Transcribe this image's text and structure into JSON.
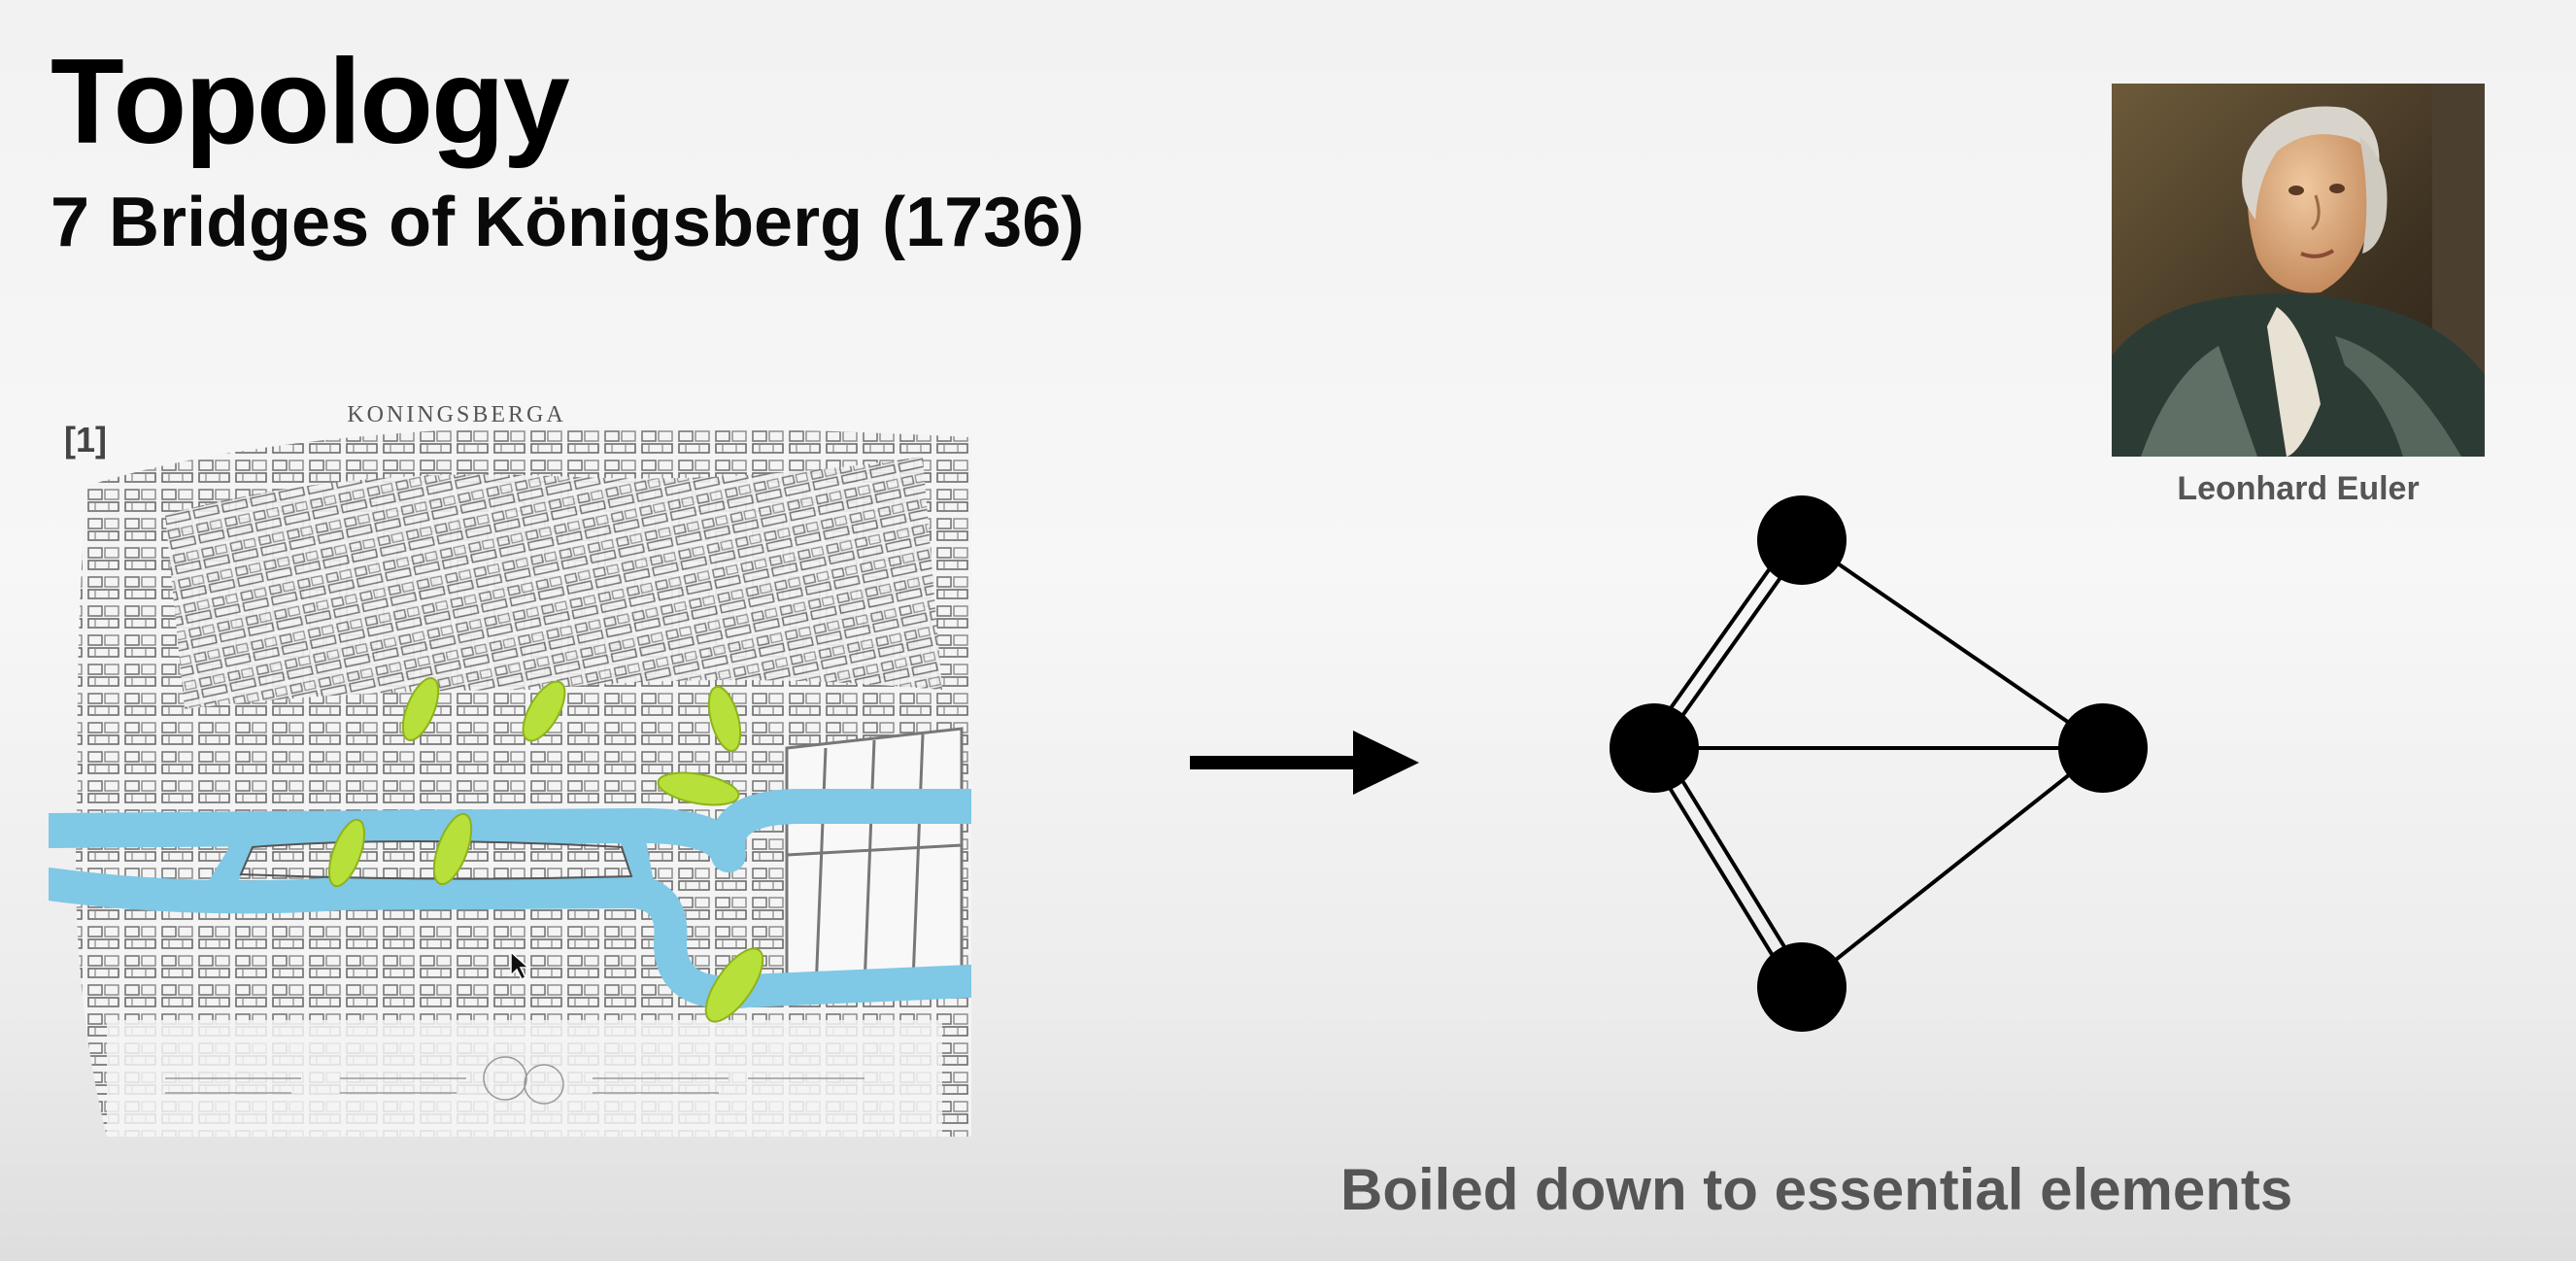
{
  "slide": {
    "title": "Topology",
    "subtitle": "7 Bridges of Königsberg (1736)",
    "citation": "[1]",
    "map_label": "KONINGSBERGA",
    "portrait_caption": "Leonhard Euler",
    "footer_caption": "Boiled down to essential elements"
  },
  "colors": {
    "river": "#7fc8e6",
    "bridge": "#b8e03a",
    "node": "#000000"
  }
}
